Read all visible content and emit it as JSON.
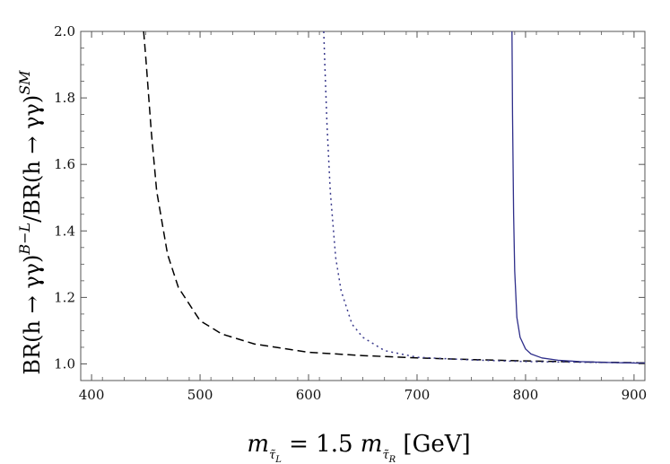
{
  "chart_data": {
    "type": "line",
    "title": "",
    "xlabel": "m_{τ̃L} = 1.5 m_{τ̃R} [GeV]",
    "ylabel": "BR(h → γγ)^{B−L} / BR(h → γγ)^{SM}",
    "xlabel_parts": {
      "m": "m",
      "sub_tau": "τ̃",
      "sub_L": "L",
      "eq": " = 1.5",
      "sub_R": "R",
      "unit": " [GeV]"
    },
    "ylabel_parts": {
      "num": "BR(h → γγ)",
      "sup_num": "B−L",
      "slash": "/BR(h → γγ)",
      "sup_den": "SM"
    },
    "xlim": [
      390,
      910
    ],
    "ylim": [
      0.95,
      2.0
    ],
    "xticks": [
      400,
      500,
      600,
      700,
      800,
      900
    ],
    "xtick_labels": [
      "400",
      "500",
      "600",
      "700",
      "800",
      "900"
    ],
    "yticks": [
      1.0,
      1.2,
      1.4,
      1.6,
      1.8,
      2.0
    ],
    "ytick_labels": [
      "1.0",
      "1.2",
      "1.4",
      "1.6",
      "1.8",
      "2.0"
    ],
    "grid": false,
    "legend": "none",
    "series": [
      {
        "style": "dashed",
        "color": "#000000",
        "x": [
          448,
          450,
          455,
          460,
          470,
          480,
          500,
          520,
          550,
          600,
          650,
          700,
          750,
          800,
          850,
          910
        ],
        "y": [
          2.0,
          1.92,
          1.7,
          1.52,
          1.33,
          1.23,
          1.13,
          1.09,
          1.06,
          1.035,
          1.025,
          1.018,
          1.013,
          1.009,
          1.006,
          1.003
        ]
      },
      {
        "style": "dotted",
        "color": "#3a3a8c",
        "x": [
          614,
          615,
          617,
          620,
          625,
          630,
          640,
          650,
          670,
          700,
          750,
          800,
          850,
          910
        ],
        "y": [
          2.0,
          1.9,
          1.72,
          1.52,
          1.32,
          1.22,
          1.12,
          1.08,
          1.04,
          1.02,
          1.012,
          1.007,
          1.005,
          1.003
        ]
      },
      {
        "style": "solid",
        "color": "#2e2e8a",
        "x": [
          787.5,
          788,
          789,
          790,
          792,
          795,
          800,
          805,
          815,
          830,
          850,
          880,
          910
        ],
        "y": [
          2.0,
          1.75,
          1.45,
          1.28,
          1.14,
          1.08,
          1.045,
          1.03,
          1.018,
          1.011,
          1.007,
          1.004,
          1.002
        ]
      }
    ]
  }
}
